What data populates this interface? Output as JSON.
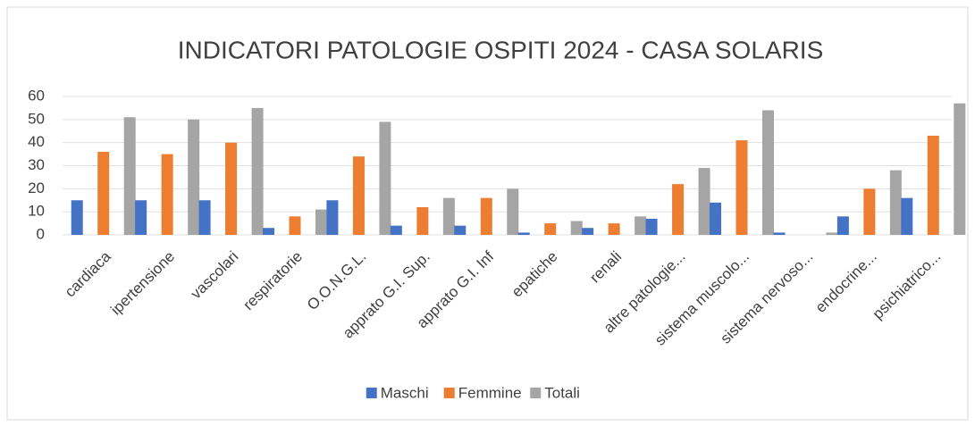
{
  "chart_data": {
    "type": "bar",
    "title": "INDICATORI PATOLOGIE OSPITI 2024 - CASA SOLARIS",
    "categories": [
      "cardiaca",
      "ipertensione",
      "vascolari",
      "respiratorie",
      "O.O.N.G.L.",
      "apprato G.I. Sup.",
      "apprato G.I. Inf",
      "epatiche",
      "renali",
      "altre patologie...",
      "sistema muscolo...",
      "sistema nervoso...",
      "endocrine...",
      "psichiatrico..."
    ],
    "series": [
      {
        "name": "Maschi",
        "color": "#4472c4",
        "values": [
          15,
          15,
          15,
          3,
          15,
          4,
          4,
          1,
          3,
          7,
          14,
          1,
          8,
          16
        ]
      },
      {
        "name": "Femmine",
        "color": "#ed7d31",
        "values": [
          36,
          35,
          40,
          8,
          34,
          12,
          16,
          5,
          5,
          22,
          41,
          0,
          20,
          43
        ]
      },
      {
        "name": "Totali",
        "color": "#a5a5a5",
        "values": [
          51,
          50,
          55,
          11,
          49,
          16,
          20,
          6,
          8,
          29,
          54,
          1,
          28,
          57
        ]
      }
    ],
    "ylim": [
      0,
      60
    ],
    "yticks": [
      0,
      10,
      20,
      30,
      40,
      50,
      60
    ],
    "grid": true,
    "legend": "bottom"
  }
}
